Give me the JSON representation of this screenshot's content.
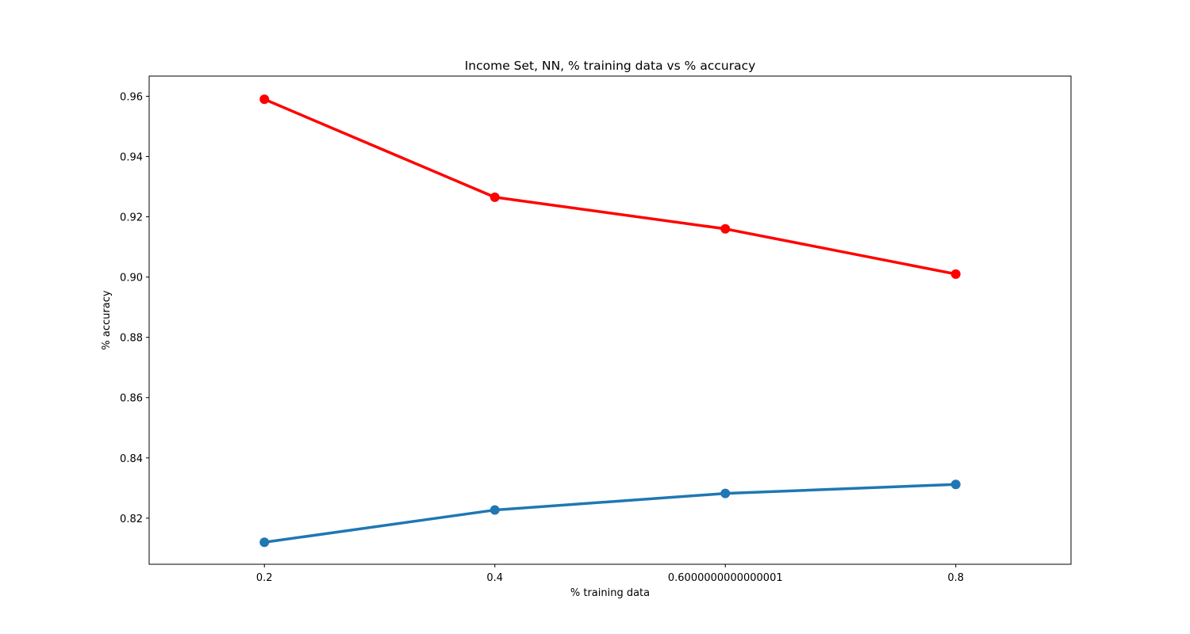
{
  "chart_data": {
    "type": "line",
    "title": "Income Set, NN, % training data vs % accuracy",
    "xlabel": "% training data",
    "ylabel": "% accuracy",
    "x": [
      0.2,
      0.4,
      0.6000000000000001,
      0.8
    ],
    "x_tick_labels": [
      "0.2",
      "0.4",
      "0.6000000000000001",
      "0.8"
    ],
    "xlim": [
      0.1,
      0.9
    ],
    "ylim": [
      0.8047,
      0.9667
    ],
    "y_ticks": [
      0.82,
      0.84,
      0.86,
      0.88,
      0.9,
      0.92,
      0.94,
      0.96
    ],
    "y_tick_labels": [
      "0.82",
      "0.84",
      "0.86",
      "0.88",
      "0.90",
      "0.92",
      "0.94",
      "0.96"
    ],
    "grid": false,
    "series": [
      {
        "color": "#ff0000",
        "values": [
          0.959,
          0.9265,
          0.916,
          0.901
        ]
      },
      {
        "color": "#1f77b4",
        "values": [
          0.812,
          0.8227,
          0.8282,
          0.8312
        ]
      }
    ]
  }
}
